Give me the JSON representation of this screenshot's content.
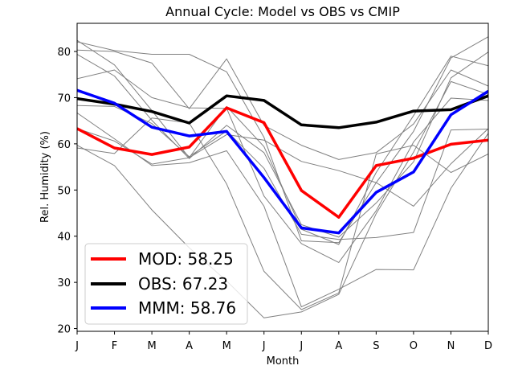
{
  "chart_data": {
    "type": "line",
    "title": "Annual Cycle: Model vs OBS vs CMIP",
    "xlabel": "Month",
    "ylabel": "Rel. Humidity (%)",
    "categories": [
      "J",
      "F",
      "M",
      "A",
      "M",
      "J",
      "J",
      "A",
      "S",
      "O",
      "N",
      "D"
    ],
    "ylim": [
      19.4,
      86.1
    ],
    "yticks": [
      20,
      30,
      40,
      50,
      60,
      70,
      80
    ],
    "legend_position": "lower-left",
    "series": [
      {
        "name": "MOD",
        "legend_label": "MOD: 58.25",
        "color": "#ff0000",
        "role": "highlight",
        "values": [
          63.3,
          59.1,
          57.7,
          59.3,
          67.8,
          64.6,
          49.9,
          44.1,
          55.3,
          56.9,
          59.9,
          60.8
        ]
      },
      {
        "name": "OBS",
        "legend_label": "OBS: 67.23",
        "color": "#000000",
        "role": "highlight",
        "values": [
          69.8,
          68.6,
          67.0,
          64.5,
          70.4,
          69.4,
          64.1,
          63.5,
          64.7,
          67.1,
          67.4,
          70.4
        ]
      },
      {
        "name": "MMM",
        "legend_label": "MMM: 58.76",
        "color": "#0000ff",
        "role": "highlight",
        "values": [
          71.6,
          68.8,
          63.6,
          61.7,
          62.7,
          52.7,
          41.8,
          40.7,
          49.5,
          53.9,
          66.3,
          71.4
        ]
      }
    ],
    "cmip_models": [
      {
        "color": "#808080",
        "values": [
          82.1,
          80.2,
          79.4,
          79.4,
          75.6,
          61.4,
          39.0,
          38.6,
          51.6,
          62.7,
          78.6,
          83.2
        ]
      },
      {
        "color": "#808080",
        "values": [
          82.4,
          77.1,
          67.2,
          57.0,
          68.1,
          59.4,
          41.5,
          38.2,
          53.8,
          66.1,
          79.0,
          76.9
        ]
      },
      {
        "color": "#808080",
        "values": [
          79.4,
          74.7,
          65.1,
          56.8,
          64.0,
          58.1,
          42.5,
          39.8,
          47.2,
          56.1,
          74.3,
          79.9
        ]
      },
      {
        "color": "#808080",
        "values": [
          74.1,
          76.0,
          70.0,
          67.8,
          67.7,
          48.7,
          38.4,
          34.3,
          45.5,
          60.4,
          69.9,
          69.4
        ]
      },
      {
        "color": "#808080",
        "values": [
          68.3,
          68.1,
          64.4,
          57.2,
          62.8,
          54.7,
          40.4,
          39.3,
          39.7,
          40.8,
          63.0,
          63.2
        ]
      },
      {
        "color": "#808080",
        "values": [
          63.3,
          60.6,
          55.6,
          57.0,
          62.0,
          60.8,
          56.2,
          54.2,
          51.6,
          46.5,
          55.7,
          63.3
        ]
      },
      {
        "color": "#808080",
        "values": [
          66.7,
          61.1,
          55.3,
          55.9,
          58.5,
          46.5,
          24.7,
          28.5,
          32.8,
          32.7,
          50.4,
          62.3
        ]
      },
      {
        "color": "#808080",
        "values": [
          59.7,
          55.3,
          45.7,
          37.5,
          30.3,
          22.3,
          23.6,
          27.4,
          44.9,
          58.2,
          73.5,
          70.7
        ]
      },
      {
        "color": "#808080",
        "values": [
          59.1,
          57.9,
          65.6,
          64.5,
          51.3,
          32.4,
          24.1,
          27.7,
          57.8,
          59.7,
          53.8,
          57.8
        ]
      },
      {
        "color": "#808080",
        "values": [
          80.3,
          80.0,
          77.5,
          67.6,
          78.4,
          64.0,
          59.7,
          56.6,
          58.1,
          64.3,
          76.0,
          72.5
        ]
      }
    ]
  }
}
